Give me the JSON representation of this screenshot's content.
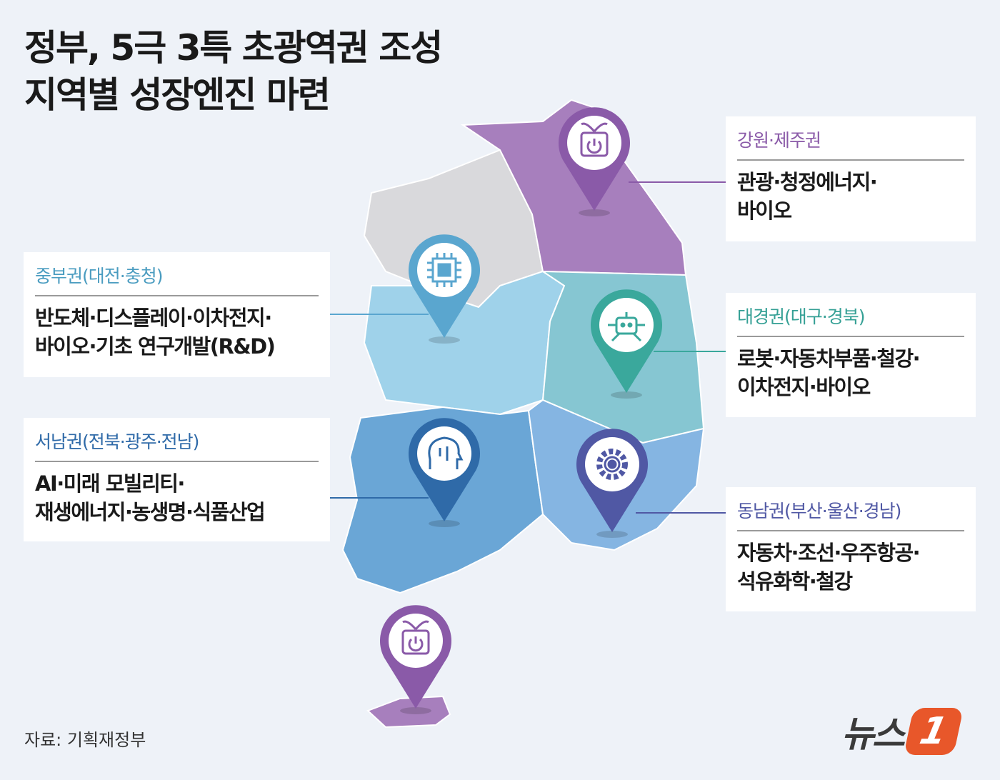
{
  "title": {
    "line1": "정부, 5극 3특 초광역권 조성",
    "line2": "지역별 성장엔진 마련"
  },
  "colors": {
    "gangwon_jeju": "#8a5aa8",
    "jungbu": "#4a9cc0",
    "daegyeong": "#35a095",
    "seonam": "#2f6aa8",
    "dongnam": "#5058a4",
    "capital_gray": "#d9d9dc"
  },
  "regions": [
    {
      "id": "gangwon_jeju",
      "heading": "강원·제주권",
      "line1": "관광·청정에너지·",
      "line2": "바이오",
      "icon": "power-plant-icon"
    },
    {
      "id": "jungbu",
      "heading": "중부권(대전·충청)",
      "line1": "반도체·디스플레이·이차전지·",
      "line2": "바이오·기초 연구개발(R&D)",
      "icon": "chip-icon"
    },
    {
      "id": "daegyeong",
      "heading": "대경권(대구·경북)",
      "line1": "로봇·자동차부품·철강·",
      "line2": "이차전지·바이오",
      "icon": "robot-icon"
    },
    {
      "id": "seonam",
      "heading": "서남권(전북·광주·전남)",
      "line1": "AI·미래 모빌리티·",
      "line2": "재생에너지·농생명·식품산업",
      "icon": "ai-brain-icon"
    },
    {
      "id": "dongnam",
      "heading": "동남권(부산·울산·경남)",
      "line1": "자동차·조선·우주항공·",
      "line2": "석유화학·철강",
      "icon": "gear-icon"
    }
  ],
  "source": "자료: 기획재정부",
  "logo": {
    "text": "뉴스",
    "mark": "1"
  }
}
